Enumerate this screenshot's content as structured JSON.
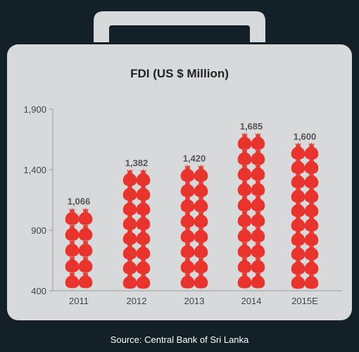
{
  "colors": {
    "background": "#142028",
    "briefcase": "#d8d9db",
    "handle": "#d8d9db",
    "bag": "#e8342d",
    "axis": "#9a9a9a"
  },
  "icon": "money-bag-icon",
  "source": "Source: Central Bank of Sri Lanka",
  "chart_data": {
    "type": "bar",
    "title": "FDI (US $ Million)",
    "xlabel": "",
    "ylabel": "",
    "categories": [
      "2011",
      "2012",
      "2013",
      "2014",
      "2015E"
    ],
    "values": [
      1066,
      1382,
      1420,
      1685,
      1600
    ],
    "value_labels": [
      "1,066",
      "1,382",
      "1,420",
      "1,685",
      "1,600"
    ],
    "yticks": [
      400,
      900,
      1400,
      1900
    ],
    "ytick_labels": [
      "400",
      "900",
      "1,400",
      "1,900"
    ],
    "ylim": [
      400,
      1900
    ],
    "grid": false,
    "legend": "none"
  }
}
